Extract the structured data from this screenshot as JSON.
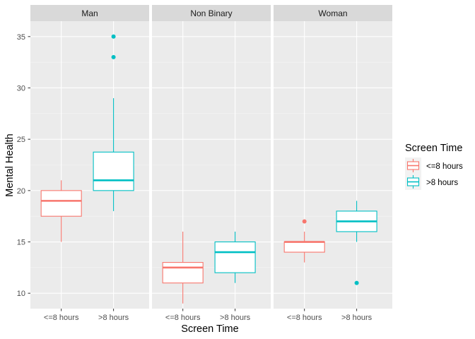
{
  "chart_data": {
    "type": "box",
    "xlabel": "Screen Time",
    "ylabel": "Mental Health",
    "ylim": [
      8.5,
      36.5
    ],
    "y_ticks": [
      10,
      15,
      20,
      25,
      30,
      35
    ],
    "categories": [
      "<=8 hours",
      ">8 hours"
    ],
    "legend": {
      "title": "Screen Time",
      "placement": "right",
      "entries": [
        {
          "label": "<=8 hours",
          "color": "#F8766D"
        },
        {
          "label": ">8 hours",
          "color": "#00BFC4"
        }
      ]
    },
    "grid": true,
    "facets": [
      {
        "name": "Man",
        "boxes": [
          {
            "category": "<=8 hours",
            "min": 15,
            "q1": 17.5,
            "median": 19,
            "q3": 20,
            "max": 21,
            "outliers": []
          },
          {
            "category": ">8 hours",
            "min": 18,
            "q1": 20,
            "median": 21,
            "q3": 23.75,
            "max": 29,
            "outliers": [
              33,
              35
            ]
          }
        ]
      },
      {
        "name": "Non Binary",
        "boxes": [
          {
            "category": "<=8 hours",
            "min": 9,
            "q1": 11,
            "median": 12.5,
            "q3": 13,
            "max": 16,
            "outliers": []
          },
          {
            "category": ">8 hours",
            "min": 11,
            "q1": 12,
            "median": 14,
            "q3": 15,
            "max": 16,
            "outliers": []
          }
        ]
      },
      {
        "name": "Woman",
        "boxes": [
          {
            "category": "<=8 hours",
            "min": 13,
            "q1": 14,
            "median": 15,
            "q3": 15,
            "max": 16,
            "outliers": [
              17
            ]
          },
          {
            "category": ">8 hours",
            "min": 15,
            "q1": 16,
            "median": 17,
            "q3": 18,
            "max": 19,
            "outliers": [
              11
            ]
          }
        ]
      }
    ]
  }
}
